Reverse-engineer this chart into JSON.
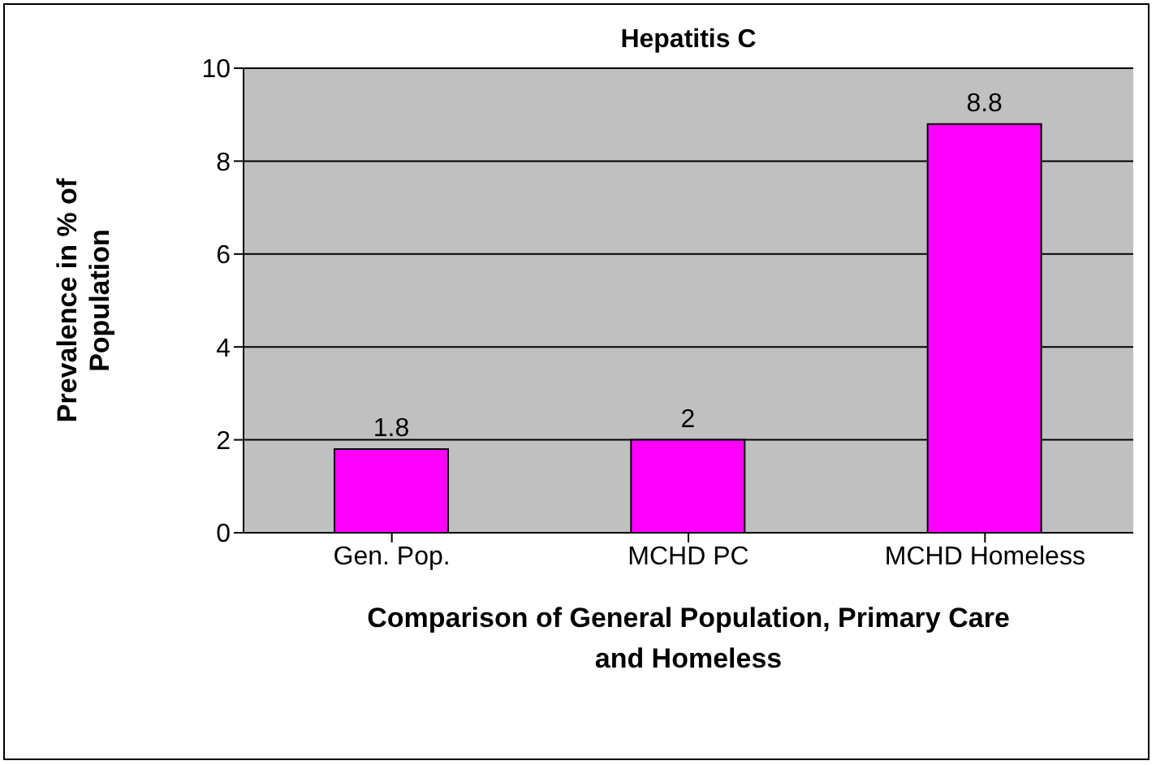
{
  "chart_data": {
    "type": "bar",
    "title": "Hepatitis C",
    "xlabel": "Comparison of General Population, Primary Care and Homeless",
    "ylabel": "Prevalence in % of Population",
    "categories": [
      "Gen. Pop.",
      "MCHD PC",
      "MCHD Homeless"
    ],
    "values": [
      1.8,
      2,
      8.8
    ],
    "color": "#ff00ff",
    "data_labels": true,
    "ylim": [
      0,
      10
    ],
    "yticks": [
      0,
      2,
      4,
      6,
      8,
      10
    ],
    "grid": "y"
  }
}
